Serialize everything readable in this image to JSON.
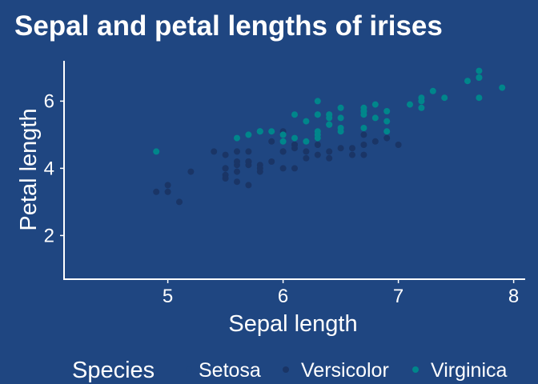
{
  "chart_data": {
    "type": "scatter",
    "title": "Sepal and petal lengths of irises",
    "xlabel": "Sepal length",
    "ylabel": "Petal length",
    "xlim": [
      4.1,
      8.1
    ],
    "ylim": [
      0.7,
      7.2
    ],
    "xticks": [
      5,
      6,
      7,
      8
    ],
    "yticks": [
      2,
      4,
      6
    ],
    "grid": false,
    "legend": {
      "title": "Species",
      "position": "bottom"
    },
    "series": [
      {
        "name": "Setosa",
        "color": "#1f4681",
        "points": []
      },
      {
        "name": "Versicolor",
        "color": "#1a3566",
        "points": [
          [
            7.0,
            4.7
          ],
          [
            6.4,
            4.5
          ],
          [
            6.9,
            4.9
          ],
          [
            5.5,
            4.0
          ],
          [
            6.5,
            4.6
          ],
          [
            5.7,
            4.5
          ],
          [
            6.3,
            4.7
          ],
          [
            4.9,
            3.3
          ],
          [
            6.6,
            4.6
          ],
          [
            5.2,
            3.9
          ],
          [
            5.0,
            3.5
          ],
          [
            5.9,
            4.2
          ],
          [
            6.0,
            4.0
          ],
          [
            6.1,
            4.7
          ],
          [
            5.6,
            3.6
          ],
          [
            6.7,
            4.4
          ],
          [
            5.6,
            4.5
          ],
          [
            5.8,
            4.1
          ],
          [
            6.2,
            4.5
          ],
          [
            5.6,
            3.9
          ],
          [
            5.9,
            4.8
          ],
          [
            6.1,
            4.0
          ],
          [
            6.3,
            4.9
          ],
          [
            6.1,
            4.7
          ],
          [
            6.4,
            4.3
          ],
          [
            6.6,
            4.4
          ],
          [
            6.8,
            4.8
          ],
          [
            6.7,
            5.0
          ],
          [
            6.0,
            4.5
          ],
          [
            5.7,
            3.5
          ],
          [
            5.5,
            3.8
          ],
          [
            5.5,
            3.7
          ],
          [
            5.8,
            3.9
          ],
          [
            6.0,
            5.1
          ],
          [
            5.4,
            4.5
          ],
          [
            6.0,
            4.5
          ],
          [
            6.7,
            4.7
          ],
          [
            6.3,
            4.4
          ],
          [
            5.6,
            4.1
          ],
          [
            5.5,
            4.0
          ],
          [
            5.5,
            4.4
          ],
          [
            6.1,
            4.6
          ],
          [
            5.8,
            4.0
          ],
          [
            5.0,
            3.3
          ],
          [
            5.6,
            4.2
          ],
          [
            5.7,
            4.2
          ],
          [
            5.7,
            4.2
          ],
          [
            6.2,
            4.3
          ],
          [
            5.1,
            3.0
          ],
          [
            5.7,
            4.1
          ]
        ]
      },
      {
        "name": "Virginica",
        "color": "#00868b",
        "points": [
          [
            6.3,
            6.0
          ],
          [
            5.8,
            5.1
          ],
          [
            7.1,
            5.9
          ],
          [
            6.3,
            5.6
          ],
          [
            6.5,
            5.8
          ],
          [
            7.6,
            6.6
          ],
          [
            4.9,
            4.5
          ],
          [
            7.3,
            6.3
          ],
          [
            6.7,
            5.8
          ],
          [
            7.2,
            6.1
          ],
          [
            6.5,
            5.1
          ],
          [
            6.4,
            5.3
          ],
          [
            6.8,
            5.5
          ],
          [
            5.7,
            5.0
          ],
          [
            5.8,
            5.1
          ],
          [
            6.4,
            5.3
          ],
          [
            6.5,
            5.5
          ],
          [
            7.7,
            6.7
          ],
          [
            7.7,
            6.9
          ],
          [
            6.0,
            5.0
          ],
          [
            6.9,
            5.7
          ],
          [
            5.6,
            4.9
          ],
          [
            7.7,
            6.7
          ],
          [
            6.3,
            4.9
          ],
          [
            6.7,
            5.7
          ],
          [
            7.2,
            6.0
          ],
          [
            6.2,
            4.8
          ],
          [
            6.1,
            4.9
          ],
          [
            6.4,
            5.6
          ],
          [
            7.2,
            5.8
          ],
          [
            7.4,
            6.1
          ],
          [
            7.9,
            6.4
          ],
          [
            6.4,
            5.6
          ],
          [
            6.3,
            5.1
          ],
          [
            6.1,
            5.6
          ],
          [
            7.7,
            6.1
          ],
          [
            6.3,
            5.6
          ],
          [
            6.4,
            5.5
          ],
          [
            6.0,
            4.8
          ],
          [
            6.9,
            5.4
          ],
          [
            6.7,
            5.6
          ],
          [
            6.9,
            5.1
          ],
          [
            5.8,
            5.1
          ],
          [
            6.8,
            5.9
          ],
          [
            6.7,
            5.7
          ],
          [
            6.7,
            5.2
          ],
          [
            6.3,
            5.0
          ],
          [
            6.5,
            5.2
          ],
          [
            6.2,
            5.4
          ],
          [
            5.9,
            5.1
          ]
        ]
      }
    ]
  },
  "colors": {
    "background": "#1f4681",
    "axis": "#ffffff",
    "text": "#ffffff"
  }
}
